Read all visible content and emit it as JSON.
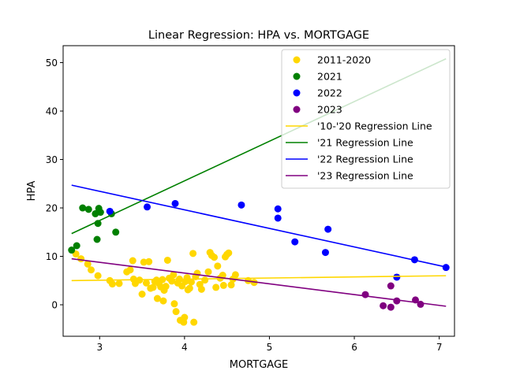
{
  "chart_data": {
    "type": "scatter",
    "title": "Linear Regression: HPA vs. MORTGAGE",
    "xlabel": "MORTGAGE",
    "ylabel": "HPA",
    "xlim": [
      2.57,
      7.18
    ],
    "ylim": [
      -6.5,
      53.5
    ],
    "xticks": [
      3,
      4,
      5,
      6,
      7
    ],
    "yticks": [
      0,
      10,
      20,
      30,
      40,
      50
    ],
    "grid": false,
    "legend_position": "top-right",
    "colors": {
      "2011-2020": "#FFD700",
      "2021": "#008000",
      "2022": "#0000FF",
      "2023": "#800080"
    },
    "series": [
      {
        "name": "2011-2020",
        "color": "#FFD700",
        "points": [
          [
            2.72,
            10.5
          ],
          [
            2.78,
            9.5
          ],
          [
            2.86,
            8.4
          ],
          [
            2.9,
            7.2
          ],
          [
            2.98,
            6.0
          ],
          [
            3.12,
            5.0
          ],
          [
            3.15,
            4.3
          ],
          [
            3.23,
            4.4
          ],
          [
            3.32,
            6.8
          ],
          [
            3.36,
            7.2
          ],
          [
            3.39,
            9.1
          ],
          [
            3.4,
            5.3
          ],
          [
            3.42,
            4.4
          ],
          [
            3.47,
            5.1
          ],
          [
            3.5,
            2.2
          ],
          [
            3.52,
            8.8
          ],
          [
            3.55,
            4.5
          ],
          [
            3.58,
            8.9
          ],
          [
            3.6,
            3.4
          ],
          [
            3.63,
            3.6
          ],
          [
            3.65,
            4.8
          ],
          [
            3.67,
            5.1
          ],
          [
            3.68,
            1.3
          ],
          [
            3.7,
            4.4
          ],
          [
            3.72,
            3.7
          ],
          [
            3.74,
            5.2
          ],
          [
            3.75,
            0.8
          ],
          [
            3.76,
            3.0
          ],
          [
            3.78,
            3.8
          ],
          [
            3.8,
            9.2
          ],
          [
            3.82,
            5.5
          ],
          [
            3.85,
            4.9
          ],
          [
            3.87,
            6.2
          ],
          [
            3.88,
            0.2
          ],
          [
            3.9,
            -1.4
          ],
          [
            3.92,
            4.5
          ],
          [
            3.94,
            5.3
          ],
          [
            3.95,
            -3.2
          ],
          [
            3.97,
            3.9
          ],
          [
            3.99,
            -3.6
          ],
          [
            4.0,
            -2.6
          ],
          [
            4.01,
            4.8
          ],
          [
            4.03,
            5.6
          ],
          [
            4.04,
            3.1
          ],
          [
            4.06,
            3.4
          ],
          [
            4.08,
            4.7
          ],
          [
            4.1,
            10.6
          ],
          [
            4.11,
            -3.6
          ],
          [
            4.13,
            5.8
          ],
          [
            4.15,
            6.5
          ],
          [
            4.18,
            4.2
          ],
          [
            4.2,
            3.2
          ],
          [
            4.24,
            5.1
          ],
          [
            4.28,
            6.8
          ],
          [
            4.3,
            10.8
          ],
          [
            4.32,
            10.2
          ],
          [
            4.35,
            9.8
          ],
          [
            4.37,
            3.6
          ],
          [
            4.39,
            8.0
          ],
          [
            4.42,
            5.5
          ],
          [
            4.45,
            6.1
          ],
          [
            4.46,
            4.0
          ],
          [
            4.48,
            9.9
          ],
          [
            4.5,
            10.4
          ],
          [
            4.52,
            10.7
          ],
          [
            4.55,
            4.1
          ],
          [
            4.57,
            5.3
          ],
          [
            4.6,
            6.2
          ],
          [
            4.75,
            5.0
          ],
          [
            4.82,
            4.6
          ]
        ]
      },
      {
        "name": "2021",
        "color": "#008000",
        "points": [
          [
            2.67,
            11.3
          ],
          [
            2.73,
            12.2
          ],
          [
            2.8,
            20.0
          ],
          [
            2.87,
            19.7
          ],
          [
            2.95,
            18.8
          ],
          [
            2.97,
            13.5
          ],
          [
            2.98,
            16.8
          ],
          [
            2.99,
            19.9
          ],
          [
            3.01,
            19.1
          ],
          [
            3.14,
            18.8
          ],
          [
            3.19,
            15.0
          ]
        ]
      },
      {
        "name": "2022",
        "color": "#0000FF",
        "points": [
          [
            3.12,
            19.3
          ],
          [
            3.56,
            20.2
          ],
          [
            3.89,
            20.9
          ],
          [
            4.67,
            20.6
          ],
          [
            5.1,
            19.8
          ],
          [
            5.1,
            17.9
          ],
          [
            5.3,
            13.0
          ],
          [
            5.66,
            10.8
          ],
          [
            5.69,
            15.6
          ],
          [
            6.5,
            5.7
          ],
          [
            6.71,
            9.3
          ],
          [
            7.08,
            7.7
          ]
        ]
      },
      {
        "name": "2023",
        "color": "#800080",
        "points": [
          [
            6.13,
            2.1
          ],
          [
            6.34,
            -0.2
          ],
          [
            6.43,
            -0.5
          ],
          [
            6.43,
            3.9
          ],
          [
            6.5,
            0.8
          ],
          [
            6.72,
            1.0
          ],
          [
            6.78,
            0.1
          ]
        ]
      }
    ],
    "regression_lines": [
      {
        "name": "'10-'20 Regression Line",
        "color": "#FFD700",
        "x": [
          2.67,
          7.08
        ],
        "y": [
          5.0,
          6.0
        ]
      },
      {
        "name": "'21 Regression Line",
        "color": "#008000",
        "x": [
          2.67,
          7.08
        ],
        "y": [
          14.7,
          50.8
        ]
      },
      {
        "name": "'22 Regression Line",
        "color": "#0000FF",
        "x": [
          2.67,
          7.08
        ],
        "y": [
          24.7,
          7.8
        ]
      },
      {
        "name": "'23 Regression Line",
        "color": "#800080",
        "x": [
          2.67,
          7.08
        ],
        "y": [
          9.5,
          -0.3
        ]
      }
    ],
    "legend": [
      {
        "label": "2011-2020",
        "marker": "dot",
        "color": "#FFD700"
      },
      {
        "label": "2021",
        "marker": "dot",
        "color": "#008000"
      },
      {
        "label": "2022",
        "marker": "dot",
        "color": "#0000FF"
      },
      {
        "label": "2023",
        "marker": "dot",
        "color": "#800080"
      },
      {
        "label": "'10-'20 Regression Line",
        "marker": "line",
        "color": "#FFD700"
      },
      {
        "label": "'21 Regression Line",
        "marker": "line",
        "color": "#008000"
      },
      {
        "label": "'22 Regression Line",
        "marker": "line",
        "color": "#0000FF"
      },
      {
        "label": "'23 Regression Line",
        "marker": "line",
        "color": "#800080"
      }
    ]
  }
}
